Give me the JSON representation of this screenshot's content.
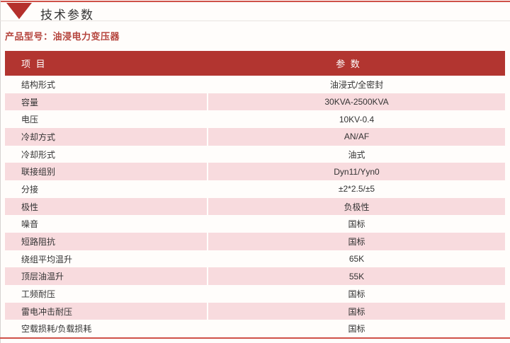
{
  "header": {
    "section_title": "技术参数",
    "product_model": "产品型号：油浸电力变压器"
  },
  "table": {
    "col_item": "项 目",
    "col_value": "参 数",
    "rows": [
      {
        "item": "结构形式",
        "value": "油浸式/全密封"
      },
      {
        "item": "容量",
        "value": "30KVA-2500KVA"
      },
      {
        "item": "电压",
        "value": "10KV-0.4"
      },
      {
        "item": "冷却方式",
        "value": "AN/AF"
      },
      {
        "item": "冷却形式",
        "value": "油式"
      },
      {
        "item": "联接组别",
        "value": "Dyn11/Yyn0"
      },
      {
        "item": "分接",
        "value": "±2*2.5/±5"
      },
      {
        "item": "极性",
        "value": "负极性"
      },
      {
        "item": "噪音",
        "value": "国标"
      },
      {
        "item": "短路阻抗",
        "value": "国标"
      },
      {
        "item": "绕组平均温升",
        "value": "65K"
      },
      {
        "item": "顶层油温升",
        "value": "55K"
      },
      {
        "item": "工频耐压",
        "value": "国标"
      },
      {
        "item": "雷电冲击耐压",
        "value": "国标"
      },
      {
        "item": "空载损耗/负载损耗",
        "value": "国标"
      }
    ]
  },
  "icons": {
    "section_marker": "triangle-down"
  },
  "colors": {
    "header_bg": "#b23530",
    "row_alt_bg": "#f8dbde",
    "accent_line": "#cf5148",
    "title_marker": "#b5302c",
    "product_text": "#b5453e",
    "body_text": "#333333"
  }
}
